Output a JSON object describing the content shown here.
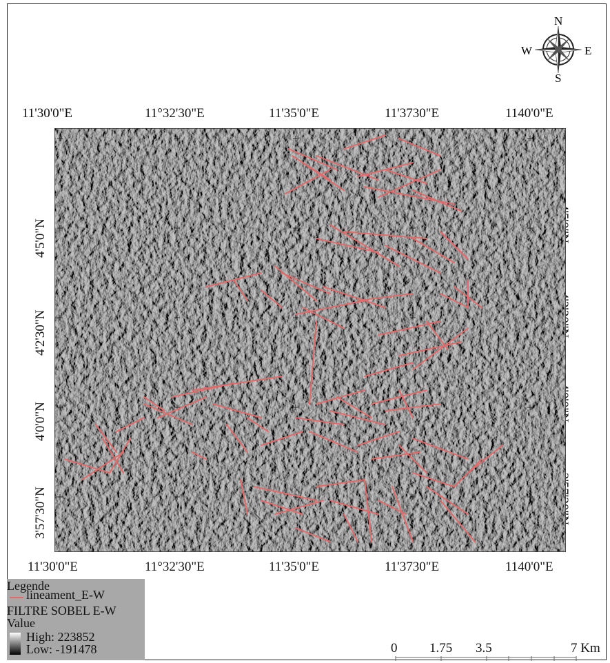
{
  "map": {
    "top_labels": [
      "11'30'0\"E",
      "11°32'30\"E",
      "11'35'0\"E",
      "11'3730\"E",
      "1140'0\"E"
    ],
    "bottom_labels": [
      "11'30'0\"E",
      "11°32'30\"E",
      "11'35'0\"E",
      "11'3730\"E",
      "1140'0\"E"
    ],
    "left_labels": [
      "4'5'0\"N",
      "4'2'30\"N",
      "4'0'0\"N",
      "3'57'30\"N"
    ],
    "right_labels": [
      "4'5'0\"N",
      "4'2'30\"N",
      "4'0'0\"N",
      "3'57'30\"N"
    ],
    "lineament_color": "#e06b6b"
  },
  "compass": {
    "n": "N",
    "s": "S",
    "e": "E",
    "w": "W"
  },
  "legend": {
    "title": "Legende",
    "lineament_label": "lineament_E-W",
    "raster_label": "FILTRE SOBEL E-W",
    "value_label": "Value",
    "high_label": "High: 223852",
    "low_label": "Low: -191478"
  },
  "scale_bar": {
    "labels": [
      "0",
      "1.75",
      "3.5",
      "7 Km"
    ]
  }
}
